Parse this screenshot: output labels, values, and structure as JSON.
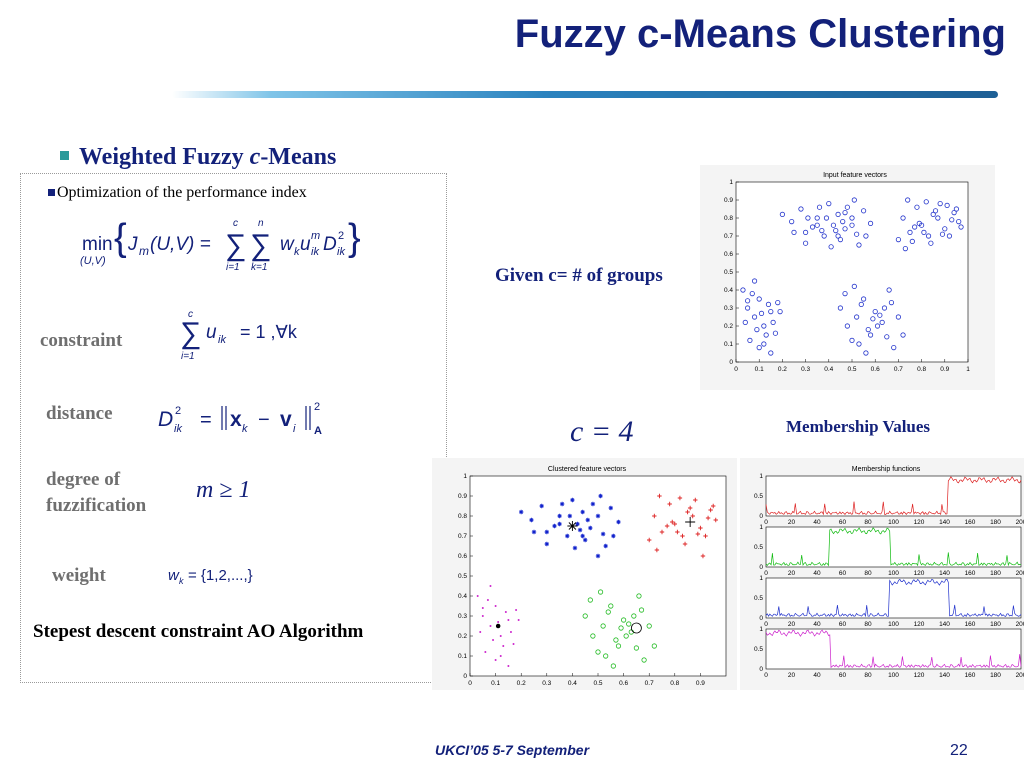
{
  "slide": {
    "title": "Fuzzy c-Means Clustering",
    "bullet_heading_prefix": "Weighted Fuzzy ",
    "bullet_heading_italic": "c",
    "bullet_heading_suffix": "-Means",
    "subbullet": "Optimization of the performance index",
    "constraint_label": "constraint",
    "distance_label": "distance",
    "fuzzification_label_line1": "degree of",
    "fuzzification_label_line2": "fuzzification",
    "weight_label": "weight",
    "algorithm_label": "Stepest descent constraint AO Algorithm",
    "given_text": "Given c= # of groups",
    "c_value": "c = 4",
    "membership_heading": "Membership Values",
    "footer": "UKCI’05 5-7 September",
    "page_number": "22"
  },
  "formulas": {
    "min": "min",
    "min_sub": "(U,V)",
    "J": "J",
    "m_sub": "m",
    "uv": "(U,V) =",
    "sum1_top": "c",
    "sum1_bot": "i=1",
    "sum2_top": "n",
    "sum2_bot": "k=1",
    "terms": "w",
    "k_sub": "k",
    "u": "u",
    "ik_sub": "ik",
    "m_sup": "m",
    "D": "D",
    "two_sup": "2",
    "constraint_rhs": "= 1 ,∀k",
    "distance_lhs": "D",
    "distance_eq": "=",
    "x_vec": "x",
    "minus": "−",
    "v_vec": "v",
    "i_sub": "i",
    "A_sub": "A",
    "fuzz": "m ≥ 1",
    "weight_lhs": "w",
    "weight_rhs": "= {1,2,...,}"
  },
  "chart_data": [
    {
      "type": "scatter",
      "title": "Input feature vectors",
      "xlim": [
        0,
        1
      ],
      "ylim": [
        0,
        1
      ],
      "xticks": [
        "0",
        "0.1",
        "0.2",
        "0.3",
        "0.4",
        "0.5",
        "0.6",
        "0.7",
        "0.8",
        "0.9",
        "1"
      ],
      "yticks": [
        "0",
        "0.1",
        "0.2",
        "0.3",
        "0.4",
        "0.5",
        "0.6",
        "0.7",
        "0.8",
        "0.9",
        "1"
      ],
      "series": [
        {
          "marker": "circle",
          "color": "#2233cc",
          "x": [
            0.2,
            0.24,
            0.28,
            0.3,
            0.33,
            0.35,
            0.38,
            0.4,
            0.42,
            0.44,
            0.45,
            0.47,
            0.5,
            0.52,
            0.55,
            0.58,
            0.25,
            0.3,
            0.36,
            0.41,
            0.46,
            0.51,
            0.56,
            0.39,
            0.43,
            0.48,
            0.53,
            0.35,
            0.44,
            0.5,
            0.31,
            0.37,
            0.47,
            0.72,
            0.75,
            0.78,
            0.8,
            0.83,
            0.85,
            0.88,
            0.9,
            0.93,
            0.95,
            0.7,
            0.74,
            0.79,
            0.84,
            0.89,
            0.94,
            0.77,
            0.82,
            0.87,
            0.92,
            0.96,
            0.73,
            0.81,
            0.86,
            0.91,
            0.76,
            0.97,
            0.03,
            0.05,
            0.08,
            0.1,
            0.12,
            0.15,
            0.18,
            0.06,
            0.09,
            0.13,
            0.16,
            0.04,
            0.11,
            0.14,
            0.07,
            0.17,
            0.1,
            0.05,
            0.12,
            0.19,
            0.08,
            0.15,
            0.45,
            0.48,
            0.52,
            0.55,
            0.58,
            0.6,
            0.63,
            0.66,
            0.5,
            0.54,
            0.57,
            0.62,
            0.65,
            0.47,
            0.53,
            0.59,
            0.64,
            0.56,
            0.61,
            0.67,
            0.7,
            0.72,
            0.68,
            0.51
          ],
          "y": [
            0.82,
            0.78,
            0.85,
            0.72,
            0.75,
            0.8,
            0.7,
            0.88,
            0.76,
            0.82,
            0.68,
            0.74,
            0.8,
            0.71,
            0.84,
            0.77,
            0.72,
            0.66,
            0.86,
            0.64,
            0.78,
            0.9,
            0.7,
            0.8,
            0.73,
            0.86,
            0.65,
            0.76,
            0.7,
            0.76,
            0.8,
            0.73,
            0.83,
            0.8,
            0.72,
            0.86,
            0.76,
            0.7,
            0.82,
            0.88,
            0.74,
            0.79,
            0.85,
            0.68,
            0.9,
            0.77,
            0.66,
            0.71,
            0.83,
            0.75,
            0.89,
            0.8,
            0.7,
            0.78,
            0.63,
            0.72,
            0.84,
            0.87,
            0.67,
            0.75,
            0.4,
            0.3,
            0.25,
            0.35,
            0.2,
            0.28,
            0.33,
            0.12,
            0.18,
            0.15,
            0.22,
            0.22,
            0.27,
            0.32,
            0.38,
            0.16,
            0.08,
            0.34,
            0.1,
            0.28,
            0.45,
            0.05,
            0.3,
            0.2,
            0.25,
            0.35,
            0.15,
            0.28,
            0.22,
            0.4,
            0.12,
            0.32,
            0.18,
            0.26,
            0.14,
            0.38,
            0.1,
            0.24,
            0.3,
            0.05,
            0.2,
            0.33,
            0.25,
            0.15,
            0.08,
            0.42
          ]
        }
      ]
    },
    {
      "type": "scatter",
      "title": "Clustered feature vectors",
      "xlim": [
        0,
        1
      ],
      "ylim": [
        0,
        1
      ],
      "xticks": [
        "0",
        "0.1",
        "0.2",
        "0.3",
        "0.4",
        "0.5",
        "0.6",
        "0.7",
        "0.8",
        "0.9"
      ],
      "yticks": [
        "0",
        "0.1",
        "0.2",
        "0.3",
        "0.4",
        "0.5",
        "0.6",
        "0.7",
        "0.8",
        "0.9",
        "1"
      ],
      "series": [
        {
          "marker": "star",
          "color": "#1122cc",
          "x": [
            0.2,
            0.24,
            0.28,
            0.3,
            0.33,
            0.35,
            0.38,
            0.4,
            0.42,
            0.44,
            0.45,
            0.47,
            0.5,
            0.52,
            0.55,
            0.58,
            0.25,
            0.3,
            0.36,
            0.41,
            0.46,
            0.51,
            0.56,
            0.39,
            0.43,
            0.48,
            0.53,
            0.35,
            0.44,
            0.5
          ],
          "y": [
            0.82,
            0.78,
            0.85,
            0.72,
            0.75,
            0.8,
            0.7,
            0.88,
            0.76,
            0.82,
            0.68,
            0.74,
            0.8,
            0.71,
            0.84,
            0.77,
            0.72,
            0.66,
            0.86,
            0.64,
            0.78,
            0.9,
            0.7,
            0.8,
            0.73,
            0.86,
            0.65,
            0.76,
            0.7,
            0.6
          ]
        },
        {
          "marker": "plus",
          "color": "#dd2222",
          "x": [
            0.72,
            0.75,
            0.78,
            0.8,
            0.83,
            0.85,
            0.88,
            0.9,
            0.93,
            0.95,
            0.7,
            0.74,
            0.79,
            0.84,
            0.89,
            0.94,
            0.77,
            0.82,
            0.87,
            0.92,
            0.96,
            0.73,
            0.81,
            0.86,
            0.91
          ],
          "y": [
            0.8,
            0.72,
            0.86,
            0.76,
            0.7,
            0.82,
            0.88,
            0.74,
            0.79,
            0.85,
            0.68,
            0.9,
            0.77,
            0.66,
            0.71,
            0.83,
            0.75,
            0.89,
            0.8,
            0.7,
            0.78,
            0.63,
            0.72,
            0.84,
            0.6
          ]
        },
        {
          "marker": "dot",
          "color": "#cc22cc",
          "x": [
            0.03,
            0.05,
            0.08,
            0.1,
            0.12,
            0.15,
            0.18,
            0.06,
            0.09,
            0.13,
            0.16,
            0.04,
            0.11,
            0.14,
            0.07,
            0.17,
            0.1,
            0.05,
            0.12,
            0.19,
            0.08,
            0.15
          ],
          "y": [
            0.4,
            0.3,
            0.25,
            0.35,
            0.2,
            0.28,
            0.33,
            0.12,
            0.18,
            0.15,
            0.22,
            0.22,
            0.27,
            0.32,
            0.38,
            0.16,
            0.08,
            0.34,
            0.1,
            0.28,
            0.45,
            0.05
          ]
        },
        {
          "marker": "circle",
          "color": "#22bb22",
          "x": [
            0.45,
            0.48,
            0.52,
            0.55,
            0.58,
            0.6,
            0.63,
            0.66,
            0.5,
            0.54,
            0.57,
            0.62,
            0.65,
            0.47,
            0.53,
            0.59,
            0.64,
            0.56,
            0.61,
            0.67,
            0.7,
            0.72,
            0.68,
            0.51
          ],
          "y": [
            0.3,
            0.2,
            0.25,
            0.35,
            0.15,
            0.28,
            0.22,
            0.4,
            0.12,
            0.32,
            0.18,
            0.26,
            0.14,
            0.38,
            0.1,
            0.24,
            0.3,
            0.05,
            0.2,
            0.33,
            0.25,
            0.15,
            0.08,
            0.42
          ]
        }
      ],
      "centers": [
        {
          "marker": "star",
          "x": 0.4,
          "y": 0.75
        },
        {
          "marker": "plus",
          "x": 0.86,
          "y": 0.77
        },
        {
          "marker": "dot",
          "x": 0.11,
          "y": 0.25
        },
        {
          "marker": "circle",
          "x": 0.65,
          "y": 0.24
        }
      ]
    },
    {
      "type": "line",
      "title": "Membership functions",
      "xlim": [
        0,
        200
      ],
      "ylim": [
        0,
        1
      ],
      "xticks": [
        "0",
        "20",
        "40",
        "60",
        "80",
        "100",
        "120",
        "140",
        "160",
        "180",
        "200"
      ],
      "yticks": [
        "0",
        "0.5",
        "1"
      ],
      "series": [
        {
          "color": "#dd2222",
          "high_from": 143,
          "high_to": 200
        },
        {
          "color": "#11bb11",
          "high_from": 50,
          "high_to": 97
        },
        {
          "color": "#2233cc",
          "high_from": 97,
          "high_to": 143
        },
        {
          "color": "#cc22cc",
          "high_from": 0,
          "high_to": 50
        }
      ]
    }
  ]
}
